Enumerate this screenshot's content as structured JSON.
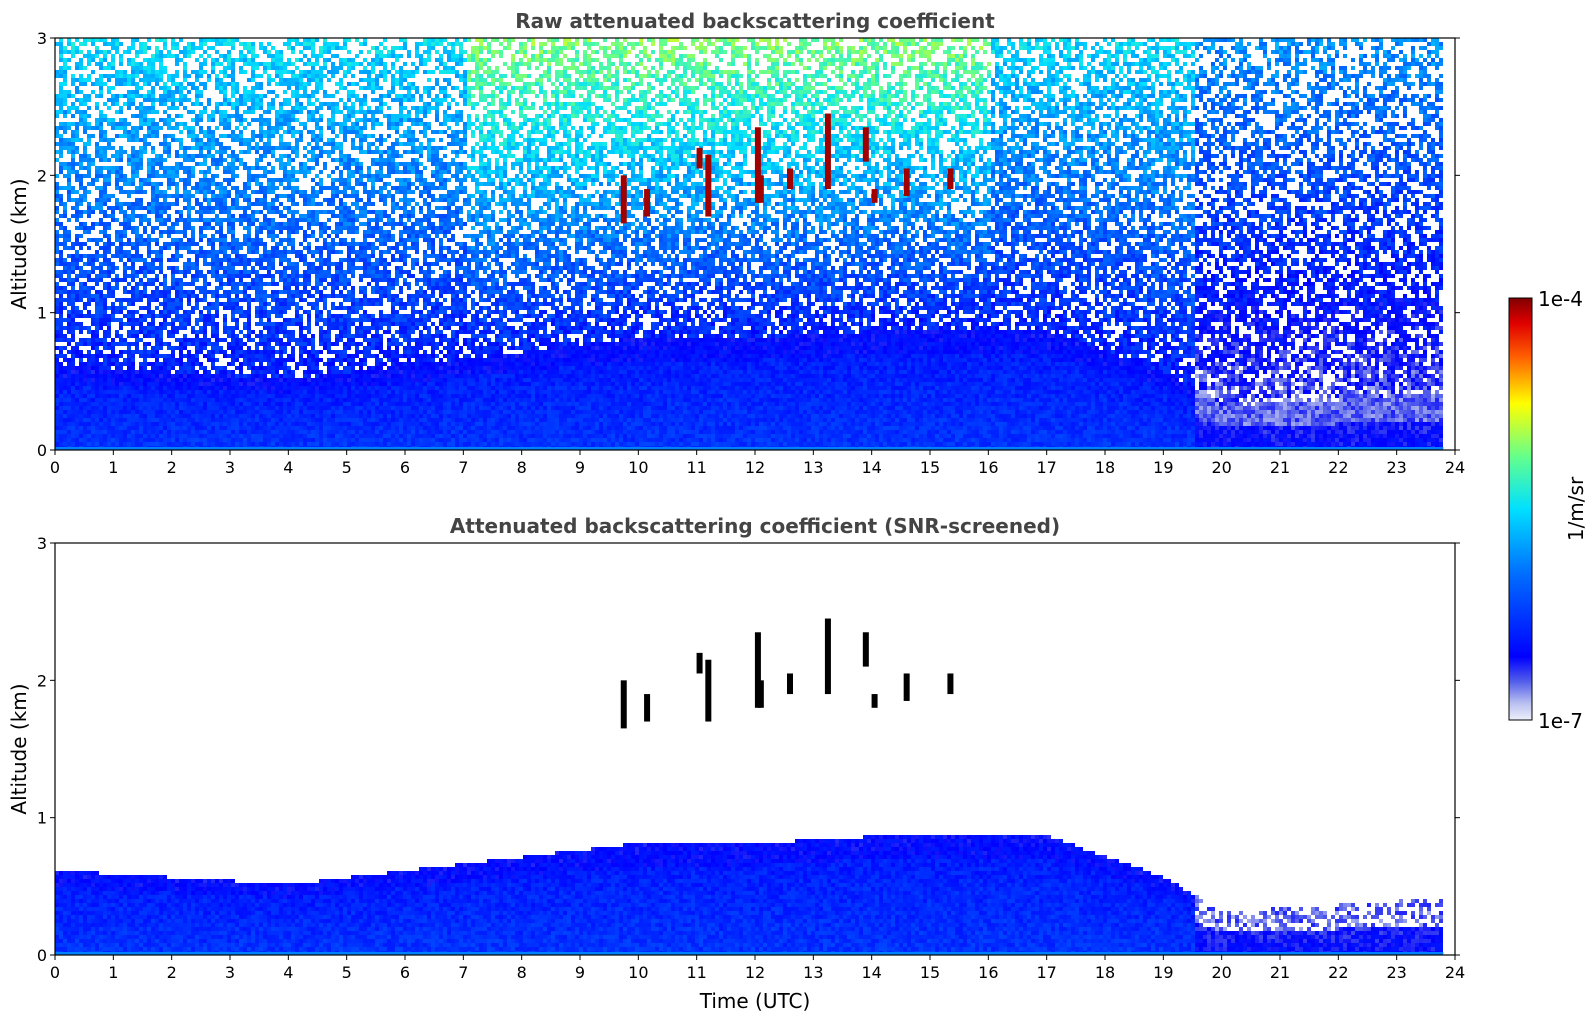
{
  "chart_data": [
    {
      "type": "heatmap",
      "title": "Raw attenuated backscattering coefficient",
      "xlabel": "",
      "ylabel": "Altitude (km)",
      "xlim": [
        0,
        24
      ],
      "ylim": [
        0,
        3
      ],
      "xticks": [
        "0",
        "1",
        "2",
        "3",
        "4",
        "5",
        "6",
        "7",
        "8",
        "9",
        "10",
        "11",
        "12",
        "13",
        "14",
        "15",
        "16",
        "17",
        "18",
        "19",
        "20",
        "21",
        "22",
        "23",
        "24"
      ],
      "yticks": [
        "0",
        "1",
        "2",
        "3"
      ],
      "data_end_time": 23.8,
      "description_of_values": "log10 attenuated backscatter; dense aerosol layer below ~0.6 km, noisy signal increasing aloft",
      "boundary_layer_top_km": [
        [
          0,
          0.6
        ],
        [
          2,
          0.55
        ],
        [
          4,
          0.5
        ],
        [
          6,
          0.6
        ],
        [
          8,
          0.7
        ],
        [
          10,
          0.8
        ],
        [
          12,
          0.8
        ],
        [
          14,
          0.85
        ],
        [
          16,
          0.85
        ],
        [
          17,
          0.85
        ],
        [
          18,
          0.7
        ],
        [
          19,
          0.55
        ],
        [
          20,
          0.3
        ],
        [
          22,
          0.35
        ],
        [
          23.8,
          0.4
        ]
      ],
      "cloud_elements": [
        {
          "time": 9.75,
          "alt_min": 1.65,
          "alt_max": 2.0
        },
        {
          "time": 10.15,
          "alt_min": 1.7,
          "alt_max": 1.9
        },
        {
          "time": 11.05,
          "alt_min": 2.05,
          "alt_max": 2.2
        },
        {
          "time": 11.2,
          "alt_min": 1.7,
          "alt_max": 2.15
        },
        {
          "time": 12.05,
          "alt_min": 1.8,
          "alt_max": 2.35
        },
        {
          "time": 12.1,
          "alt_min": 1.8,
          "alt_max": 2.0
        },
        {
          "time": 12.6,
          "alt_min": 1.9,
          "alt_max": 2.05
        },
        {
          "time": 13.25,
          "alt_min": 1.9,
          "alt_max": 2.45
        },
        {
          "time": 13.9,
          "alt_min": 2.1,
          "alt_max": 2.35
        },
        {
          "time": 14.05,
          "alt_min": 1.8,
          "alt_max": 1.9
        },
        {
          "time": 14.6,
          "alt_min": 1.85,
          "alt_max": 2.05
        },
        {
          "time": 15.35,
          "alt_min": 1.9,
          "alt_max": 2.05
        }
      ]
    },
    {
      "type": "heatmap",
      "title": "Attenuated backscattering coefficient (SNR-screened)",
      "xlabel": "Time (UTC)",
      "ylabel": "Altitude (km)",
      "xlim": [
        0,
        24
      ],
      "ylim": [
        0,
        3
      ],
      "xticks": [
        "0",
        "1",
        "2",
        "3",
        "4",
        "5",
        "6",
        "7",
        "8",
        "9",
        "10",
        "11",
        "12",
        "13",
        "14",
        "15",
        "16",
        "17",
        "18",
        "19",
        "20",
        "21",
        "22",
        "23",
        "24"
      ],
      "yticks": [
        "0",
        "1",
        "2",
        "3"
      ],
      "data_end_time": 23.8,
      "description_of_values": "same field with low-SNR pixels removed (white); boundary layer and cloud elements remain"
    }
  ],
  "colorbar": {
    "label": "1/m/sr",
    "min_label": "1e-7",
    "max_label": "1e-4",
    "colormap": "jet"
  }
}
